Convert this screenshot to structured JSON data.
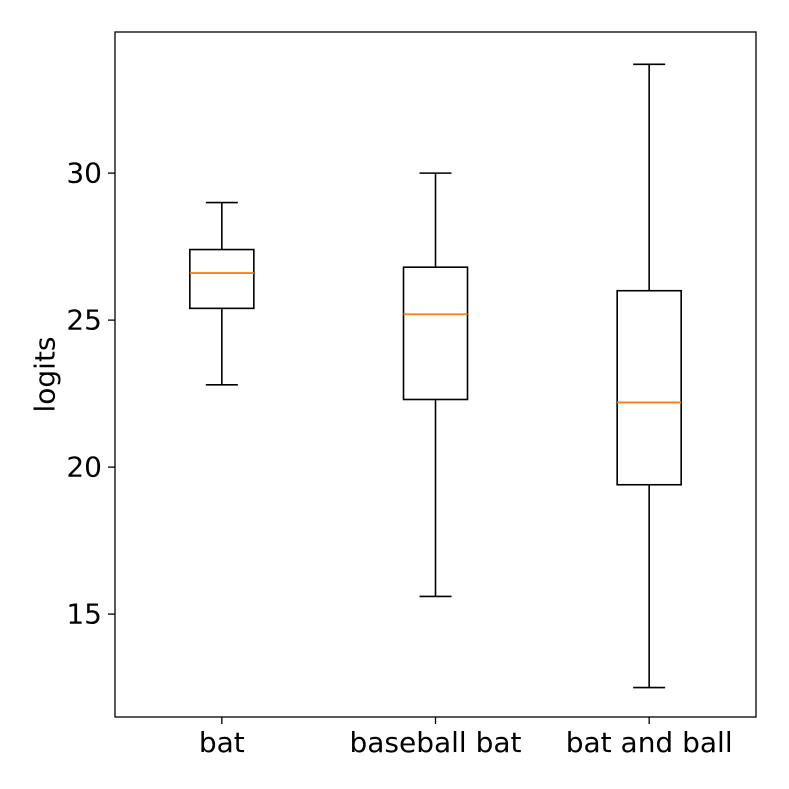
{
  "chart_data": {
    "type": "box",
    "title": "",
    "xlabel": "",
    "ylabel": "logits",
    "ylim": [
      11.5,
      34.8
    ],
    "yticks": [
      15,
      20,
      25,
      30
    ],
    "grid": false,
    "categories": [
      "bat",
      "baseball bat",
      "bat and ball"
    ],
    "boxes": [
      {
        "category": "bat",
        "whisker_low": 22.8,
        "q1": 25.4,
        "median": 26.6,
        "q3": 27.4,
        "whisker_high": 29.0
      },
      {
        "category": "baseball bat",
        "whisker_low": 15.6,
        "q1": 22.3,
        "median": 25.2,
        "q3": 26.8,
        "whisker_high": 30.0
      },
      {
        "category": "bat and ball",
        "whisker_low": 12.5,
        "q1": 19.4,
        "median": 22.2,
        "q3": 26.0,
        "whisker_high": 33.7
      }
    ],
    "colors": {
      "box": "#000000",
      "median": "#ff7f0e"
    }
  }
}
